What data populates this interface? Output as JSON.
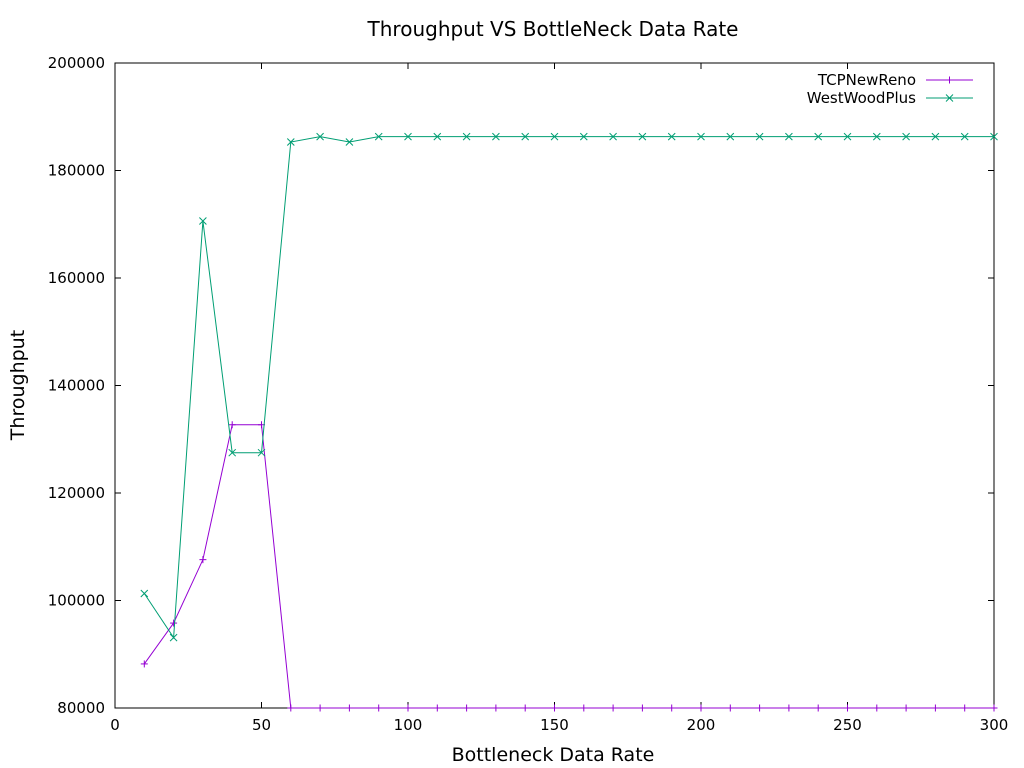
{
  "chart_data": {
    "type": "line",
    "title": "Throughput VS BottleNeck Data Rate",
    "xlabel": "Bottleneck Data Rate",
    "ylabel": "Throughput",
    "xlim": [
      0,
      300
    ],
    "ylim": [
      80000,
      200000
    ],
    "xticks": [
      0,
      50,
      100,
      150,
      200,
      250,
      300
    ],
    "yticks": [
      80000,
      100000,
      120000,
      140000,
      160000,
      180000,
      200000
    ],
    "grid": false,
    "legend_position": "top-right",
    "x": [
      10,
      20,
      30,
      40,
      50,
      60,
      70,
      80,
      90,
      100,
      110,
      120,
      130,
      140,
      150,
      160,
      170,
      180,
      190,
      200,
      210,
      220,
      230,
      240,
      250,
      260,
      270,
      280,
      290,
      300
    ],
    "series": [
      {
        "name": "TCPNewReno",
        "color": "#9400d3",
        "marker": "plus",
        "values": [
          88200,
          95800,
          107600,
          132700,
          132700,
          79800,
          79800,
          79800,
          79800,
          79800,
          79800,
          79800,
          79800,
          79800,
          79800,
          79800,
          79800,
          79800,
          79800,
          79800,
          79800,
          79800,
          79800,
          79800,
          79800,
          79800,
          79800,
          79800,
          79800,
          79800
        ]
      },
      {
        "name": "WestWoodPlus",
        "color": "#009e73",
        "marker": "cross",
        "values": [
          101300,
          93100,
          170600,
          127500,
          127500,
          185300,
          186300,
          185300,
          186300,
          186300,
          186300,
          186300,
          186300,
          186300,
          186300,
          186300,
          186300,
          186300,
          186300,
          186300,
          186300,
          186300,
          186300,
          186300,
          186300,
          186300,
          186300,
          186300,
          186300,
          186300
        ]
      }
    ]
  }
}
